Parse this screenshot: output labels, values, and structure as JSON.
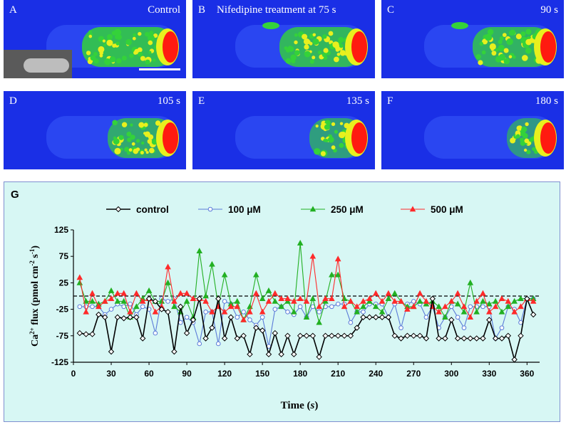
{
  "panels": [
    {
      "letter": "A",
      "label": "Control",
      "intensity": 1.0
    },
    {
      "letter": "B",
      "label": "Nifedipine treatment at 75 s",
      "intensity": 0.9
    },
    {
      "letter": "C",
      "label": "90 s",
      "intensity": 0.85
    },
    {
      "letter": "D",
      "label": "105 s",
      "intensity": 0.7
    },
    {
      "letter": "E",
      "label": "135 s",
      "intensity": 0.55
    },
    {
      "letter": "F",
      "label": "180 s",
      "intensity": 0.45
    }
  ],
  "colors": {
    "bg_blue": "#1a2fe6",
    "glow_blue": "#3d63ff",
    "green": "#34d23a",
    "yellow": "#e8f01e",
    "red": "#ff1a10",
    "chart_bg": "#d7f7f4",
    "border": "#7f8fcf"
  },
  "chart_data": {
    "type": "line",
    "panel_letter": "G",
    "xlabel_main": "Time (",
    "xlabel_unit": "s",
    "xlabel_end": ")",
    "ylabel_prefix": "Ca",
    "ylabel_sup": "2+",
    "ylabel_rest": " flux (pmol cm",
    "ylabel_sup2": "-2",
    "ylabel_rest2": " s",
    "ylabel_sup3": "-1",
    "ylabel_end": ")",
    "xlim": [
      0,
      370
    ],
    "ylim": [
      -125,
      125
    ],
    "xticks": [
      "0",
      "30",
      "60",
      "90",
      "120",
      "150",
      "180",
      "210",
      "240",
      "270",
      "300",
      "330",
      "360"
    ],
    "yticks": [
      "125",
      "75",
      "25",
      "-25",
      "-75",
      "-125"
    ],
    "legend_position": "top",
    "series": [
      {
        "name": "control",
        "color": "#000000",
        "marker": "diamond",
        "x": [
          5,
          10,
          15,
          20,
          25,
          30,
          35,
          40,
          45,
          50,
          55,
          60,
          65,
          70,
          75,
          80,
          85,
          90,
          95,
          100,
          105,
          110,
          115,
          120,
          125,
          130,
          135,
          140,
          145,
          150,
          155,
          160,
          165,
          170,
          175,
          180,
          185,
          190,
          195,
          200,
          205,
          210,
          215,
          220,
          225,
          230,
          235,
          240,
          245,
          250,
          255,
          260,
          265,
          270,
          275,
          280,
          285,
          290,
          295,
          300,
          305,
          310,
          315,
          320,
          325,
          330,
          335,
          340,
          345,
          350,
          355,
          360,
          365
        ],
        "y": [
          -70,
          -72,
          -72,
          -35,
          -40,
          -105,
          -40,
          -42,
          -40,
          -40,
          -80,
          -5,
          -10,
          -25,
          -30,
          -105,
          -20,
          -70,
          -45,
          -5,
          -80,
          -60,
          -5,
          -80,
          -40,
          -80,
          -75,
          -110,
          -60,
          -65,
          -110,
          -70,
          -110,
          -75,
          -110,
          -75,
          -75,
          -75,
          -115,
          -75,
          -75,
          -75,
          -75,
          -75,
          -60,
          -40,
          -40,
          -40,
          -40,
          -40,
          -75,
          -80,
          -75,
          -75,
          -75,
          -80,
          -5,
          -80,
          -80,
          -45,
          -80,
          -80,
          -80,
          -80,
          -80,
          -45,
          -80,
          -80,
          -75,
          -120,
          -75,
          -5,
          -35
        ]
      },
      {
        "name": "100 μM",
        "color": "#5b7bd8",
        "marker": "circle",
        "x": [
          5,
          10,
          15,
          20,
          25,
          30,
          35,
          40,
          45,
          50,
          55,
          60,
          65,
          70,
          75,
          80,
          85,
          90,
          95,
          100,
          105,
          110,
          115,
          120,
          125,
          130,
          135,
          140,
          145,
          150,
          155,
          160,
          165,
          170,
          175,
          180,
          185,
          190,
          195,
          200,
          205,
          210,
          215,
          220,
          225,
          230,
          235,
          240,
          245,
          250,
          255,
          260,
          265,
          270,
          275,
          280,
          285,
          290,
          295,
          300,
          305,
          310,
          315,
          320,
          325,
          330,
          335,
          340,
          345,
          350,
          355,
          360,
          365
        ],
        "y": [
          -20,
          -20,
          -20,
          -20,
          -35,
          -25,
          -15,
          -20,
          -15,
          -35,
          -20,
          -25,
          -70,
          -5,
          -10,
          -5,
          -50,
          -40,
          -50,
          -90,
          -30,
          -30,
          -90,
          -10,
          -15,
          -40,
          -30,
          -45,
          -55,
          -40,
          -95,
          -25,
          -20,
          -30,
          -35,
          -20,
          -40,
          -20,
          -30,
          -20,
          -20,
          -15,
          -15,
          -50,
          -30,
          -30,
          -15,
          -15,
          -15,
          -40,
          -15,
          -60,
          -15,
          -10,
          -15,
          -40,
          -20,
          -60,
          -40,
          -20,
          -40,
          -60,
          -20,
          -20,
          -20,
          -20,
          -80,
          -60,
          -20,
          -25,
          -50,
          -5,
          -5
        ]
      },
      {
        "name": "250 μM",
        "color": "#22b022",
        "marker": "triangle",
        "x": [
          5,
          10,
          15,
          20,
          25,
          30,
          35,
          40,
          45,
          50,
          55,
          60,
          65,
          70,
          75,
          80,
          85,
          90,
          95,
          100,
          105,
          110,
          115,
          120,
          125,
          130,
          135,
          140,
          145,
          150,
          155,
          160,
          165,
          170,
          175,
          180,
          185,
          190,
          195,
          200,
          205,
          210,
          215,
          220,
          225,
          230,
          235,
          240,
          245,
          250,
          255,
          260,
          265,
          270,
          275,
          280,
          285,
          290,
          295,
          300,
          305,
          310,
          315,
          320,
          325,
          330,
          335,
          340,
          345,
          350,
          355,
          360,
          365
        ],
        "y": [
          25,
          -10,
          -10,
          -15,
          -10,
          10,
          -10,
          -10,
          -40,
          -20,
          -5,
          10,
          -10,
          -10,
          25,
          -20,
          -30,
          -10,
          -40,
          85,
          0,
          60,
          -20,
          40,
          -15,
          -10,
          -45,
          -20,
          40,
          -5,
          10,
          -10,
          -20,
          -10,
          -30,
          100,
          -40,
          -5,
          -50,
          -10,
          40,
          40,
          -5,
          -10,
          -30,
          -20,
          -10,
          -20,
          -30,
          -5,
          5,
          -10,
          -20,
          -20,
          -10,
          -15,
          -10,
          -20,
          -40,
          -10,
          -15,
          -30,
          25,
          -30,
          -10,
          -15,
          -10,
          -30,
          -20,
          -10,
          -5,
          -5,
          -5
        ]
      },
      {
        "name": "500 μM",
        "color": "#ff2a2a",
        "marker": "triangle",
        "x": [
          5,
          10,
          15,
          20,
          25,
          30,
          35,
          40,
          45,
          50,
          55,
          60,
          65,
          70,
          75,
          80,
          85,
          90,
          95,
          100,
          105,
          110,
          115,
          120,
          125,
          130,
          135,
          140,
          145,
          150,
          155,
          160,
          165,
          170,
          175,
          180,
          185,
          190,
          195,
          200,
          205,
          210,
          215,
          220,
          225,
          230,
          235,
          240,
          245,
          250,
          255,
          260,
          265,
          270,
          275,
          280,
          285,
          290,
          295,
          300,
          305,
          310,
          315,
          320,
          325,
          330,
          335,
          340,
          345,
          350,
          355,
          360,
          365
        ],
        "y": [
          35,
          -30,
          5,
          -20,
          -10,
          -5,
          5,
          5,
          -30,
          5,
          -10,
          -5,
          -30,
          -20,
          55,
          -10,
          5,
          5,
          -5,
          -5,
          -10,
          -30,
          -20,
          -30,
          -20,
          -20,
          -45,
          -30,
          5,
          -30,
          -10,
          5,
          -5,
          -5,
          -10,
          -5,
          -10,
          75,
          -20,
          -5,
          -5,
          70,
          -20,
          -10,
          -20,
          -10,
          -5,
          5,
          -10,
          5,
          -10,
          -10,
          -25,
          -20,
          5,
          -10,
          -20,
          -30,
          -20,
          -10,
          5,
          -20,
          -40,
          -10,
          5,
          -30,
          -20,
          -5,
          -10,
          -30,
          -20,
          -5,
          -10
        ]
      }
    ]
  }
}
